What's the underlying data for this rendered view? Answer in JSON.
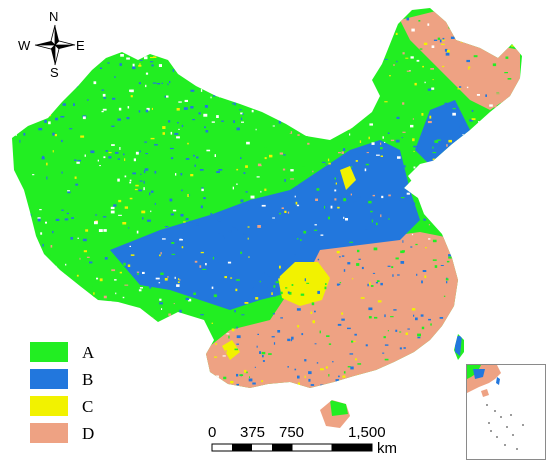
{
  "compass": {
    "north": "N",
    "south": "S",
    "west": "W",
    "east": "E"
  },
  "legend": {
    "items": [
      {
        "label": "A",
        "color": "#22ee22"
      },
      {
        "label": "B",
        "color": "#2277dd"
      },
      {
        "label": "C",
        "color": "#f2f200"
      },
      {
        "label": "D",
        "color": "#eea283"
      }
    ]
  },
  "scale_bar": {
    "ticks": [
      "0",
      "375",
      "750",
      "1,500"
    ],
    "unit": "km"
  },
  "colors": {
    "class_a": "#22ee22",
    "class_b": "#2277dd",
    "class_c": "#f2f200",
    "class_d": "#eea283",
    "background": "#ffffff",
    "inset_border": "#8a8a8a"
  }
}
